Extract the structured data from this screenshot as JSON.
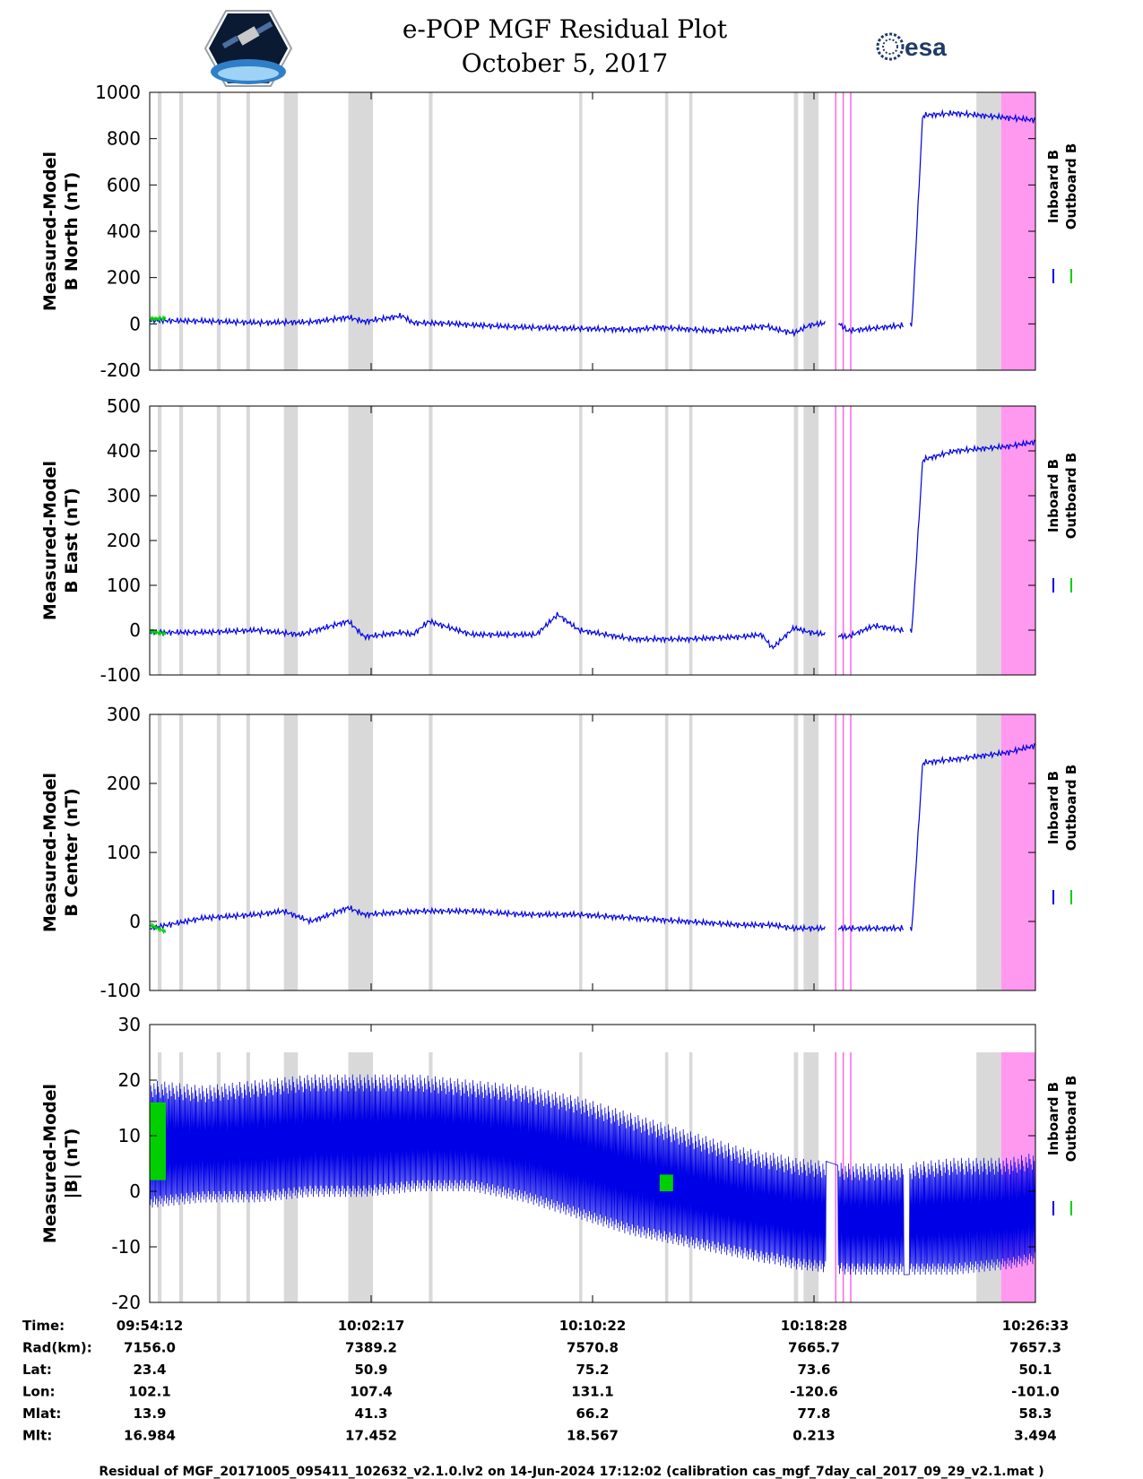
{
  "header": {
    "title": "e-POP MGF Residual Plot",
    "date": "October 5, 2017"
  },
  "colors": {
    "inboard": "#0000e6",
    "outboard": "#00d000",
    "gap_shade": "#d9d9d9",
    "flag_shade": "#ff99f0",
    "flag_line": "#ff66e8"
  },
  "chart_data": [
    {
      "type": "line",
      "ylabel": [
        "Measured-Model",
        "B North (nT)"
      ],
      "ylim": [
        -200,
        1000
      ],
      "yticks": [
        -200,
        0,
        200,
        400,
        600,
        800,
        1000
      ],
      "legend": [
        "Inboard B",
        "Outboard B"
      ],
      "series": [
        {
          "name": "Inboard B",
          "x": [
            0,
            100,
            200,
            300,
            370,
            400,
            470,
            490,
            560,
            600,
            700,
            800,
            900,
            950,
            1050,
            1100,
            1150,
            1160,
            1200,
            1230,
            1280,
            1300,
            1410,
            1420,
            1440,
            1500,
            1600,
            1650
          ],
          "values": [
            15,
            12,
            5,
            8,
            28,
            10,
            35,
            5,
            2,
            -5,
            -15,
            -20,
            -25,
            -15,
            -30,
            -20,
            -10,
            -20,
            -40,
            -5,
            10,
            -30,
            -5,
            0,
            900,
            910,
            890,
            880
          ]
        },
        {
          "name": "Outboard B",
          "x": [
            0,
            30
          ],
          "values": [
            20,
            25
          ]
        }
      ]
    },
    {
      "type": "line",
      "ylabel": [
        "Measured-Model",
        "B East (nT)"
      ],
      "ylim": [
        -100,
        500
      ],
      "yticks": [
        -100,
        0,
        100,
        200,
        300,
        400,
        500
      ],
      "legend": [
        "Inboard B",
        "Outboard B"
      ],
      "series": [
        {
          "name": "Inboard B",
          "x": [
            0,
            100,
            200,
            280,
            370,
            400,
            470,
            490,
            520,
            600,
            720,
            760,
            800,
            900,
            1000,
            1100,
            1140,
            1160,
            1200,
            1230,
            1300,
            1350,
            1400,
            1420,
            1440,
            1500,
            1600,
            1650
          ],
          "values": [
            -5,
            -5,
            0,
            -10,
            20,
            -15,
            -5,
            -10,
            20,
            -10,
            -10,
            35,
            0,
            -20,
            -20,
            -15,
            -10,
            -40,
            5,
            -5,
            -15,
            10,
            0,
            0,
            380,
            400,
            410,
            420
          ]
        },
        {
          "name": "Outboard B",
          "x": [
            0,
            30
          ],
          "values": [
            -3,
            -8
          ]
        }
      ]
    },
    {
      "type": "line",
      "ylabel": [
        "Measured-Model",
        "B Center (nT)"
      ],
      "ylim": [
        -100,
        300
      ],
      "yticks": [
        -100,
        0,
        100,
        200,
        300
      ],
      "legend": [
        "Inboard B",
        "Outboard B"
      ],
      "series": [
        {
          "name": "Inboard B",
          "x": [
            0,
            100,
            200,
            250,
            300,
            370,
            400,
            500,
            600,
            700,
            800,
            900,
            1000,
            1100,
            1150,
            1160,
            1200,
            1230,
            1300,
            1420,
            1440,
            1500,
            1600,
            1650
          ],
          "values": [
            -10,
            5,
            10,
            15,
            0,
            20,
            10,
            15,
            15,
            10,
            10,
            5,
            0,
            -5,
            -5,
            -5,
            -10,
            -10,
            -10,
            -10,
            230,
            235,
            245,
            255
          ]
        },
        {
          "name": "Outboard B",
          "x": [
            0,
            30
          ],
          "values": [
            -5,
            -15
          ]
        }
      ]
    },
    {
      "type": "line",
      "ylabel": [
        "Measured-Model",
        "|B| (nT)"
      ],
      "ylim": [
        -20,
        30
      ],
      "yticks": [
        -20,
        -10,
        0,
        10,
        20,
        30
      ],
      "legend": [
        "Inboard B",
        "Outboard B"
      ],
      "series": [
        {
          "name": "Inboard B (max)",
          "x": [
            0,
            100,
            200,
            300,
            400,
            500,
            600,
            700,
            800,
            900,
            1000,
            1100,
            1150,
            1160,
            1200,
            1300,
            1400,
            1500,
            1600,
            1650
          ],
          "values": [
            20,
            19,
            20,
            21,
            21,
            21,
            20,
            19,
            17,
            14,
            11,
            8,
            7,
            7,
            6,
            5,
            5,
            6,
            6,
            7
          ]
        },
        {
          "name": "Inboard B (min)",
          "x": [
            0,
            100,
            200,
            300,
            400,
            500,
            600,
            700,
            800,
            900,
            1000,
            1100,
            1150,
            1160,
            1200,
            1300,
            1400,
            1500,
            1600,
            1650
          ],
          "values": [
            -3,
            -2,
            -2,
            -1,
            -1,
            0,
            0,
            -2,
            -5,
            -8,
            -10,
            -12,
            -13,
            -13,
            -14,
            -15,
            -15,
            -15,
            -14,
            -13
          ]
        },
        {
          "name": "Outboard B",
          "x": [
            0,
            30,
            950,
            975
          ],
          "values": [
            12,
            8,
            2,
            1
          ]
        }
      ]
    }
  ],
  "shading": {
    "gaps": [
      [
        15,
        22
      ],
      [
        55,
        62
      ],
      [
        125,
        132
      ],
      [
        180,
        187
      ],
      [
        250,
        276
      ],
      [
        370,
        416
      ],
      [
        520,
        527
      ],
      [
        800,
        806
      ],
      [
        960,
        966
      ],
      [
        1005,
        1011
      ],
      [
        1200,
        1208
      ],
      [
        1218,
        1246
      ],
      [
        1540,
        1586
      ]
    ],
    "flag_lines": [
      1278,
      1292,
      1306
    ],
    "flag_span": [
      1586,
      1650
    ],
    "data_gaps": [
      [
        1260,
        1282
      ],
      [
        1405,
        1415
      ]
    ]
  },
  "time_axis": {
    "x_range": [
      0,
      1650
    ],
    "tick_x": [
      0,
      412.5,
      825,
      1237.5,
      1650
    ],
    "rows": [
      {
        "label": "Time:",
        "values": [
          "09:54:12",
          "10:02:17",
          "10:10:22",
          "10:18:28",
          "10:26:33"
        ]
      },
      {
        "label": "Rad(km):",
        "values": [
          "7156.0",
          "7389.2",
          "7570.8",
          "7665.7",
          "7657.3"
        ]
      },
      {
        "label": "Lat:",
        "values": [
          "23.4",
          "50.9",
          "75.2",
          "73.6",
          "50.1"
        ]
      },
      {
        "label": "Lon:",
        "values": [
          "102.1",
          "107.4",
          "131.1",
          "-120.6",
          "-101.0"
        ]
      },
      {
        "label": "Mlat:",
        "values": [
          "13.9",
          "41.3",
          "66.2",
          "77.8",
          "58.3"
        ]
      },
      {
        "label": "Mlt:",
        "values": [
          "16.984",
          "17.452",
          "18.567",
          "0.213",
          "3.494"
        ]
      }
    ]
  },
  "footer": "Residual of MGF_20171005_095411_102632_v2.1.0.lv2 on 14-Jun-2024 17:12:02 (calibration cas_mgf_7day_cal_2017_09_29_v2.1.mat )"
}
